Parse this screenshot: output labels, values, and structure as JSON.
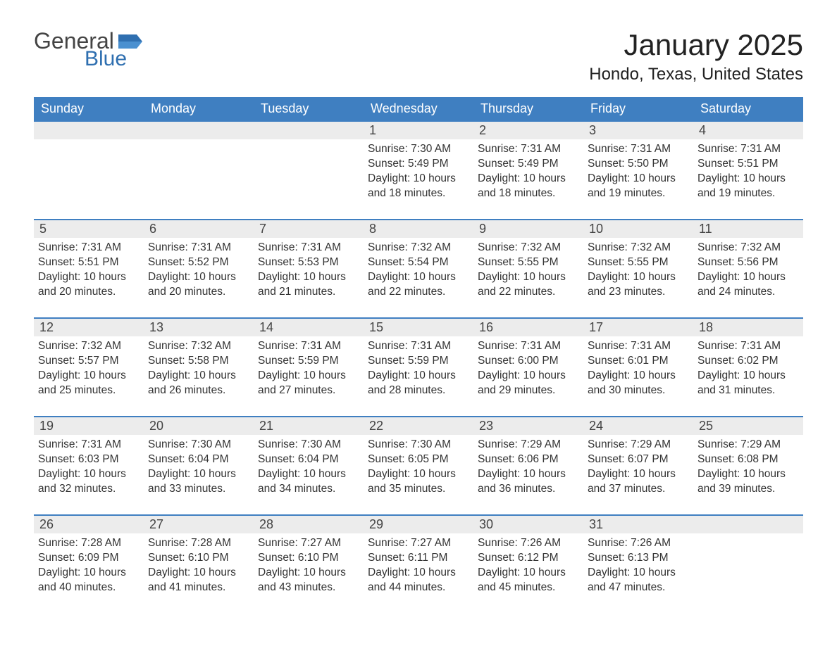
{
  "logo": {
    "text_general": "General",
    "text_blue": "Blue",
    "flag_color": "#2f6fb0"
  },
  "title": "January 2025",
  "location": "Hondo, Texas, United States",
  "colors": {
    "header_bg": "#3f7fc1",
    "header_text": "#ffffff",
    "row_top_border": "#3f7fc1",
    "daynum_bg": "#ececec",
    "body_text": "#333333",
    "page_bg": "#ffffff"
  },
  "weekdays": [
    "Sunday",
    "Monday",
    "Tuesday",
    "Wednesday",
    "Thursday",
    "Friday",
    "Saturday"
  ],
  "labels": {
    "sunrise": "Sunrise",
    "sunset": "Sunset",
    "daylight": "Daylight"
  },
  "weeks": [
    [
      null,
      null,
      null,
      {
        "n": 1,
        "sunrise": "7:30 AM",
        "sunset": "5:49 PM",
        "daylight": "10 hours and 18 minutes."
      },
      {
        "n": 2,
        "sunrise": "7:31 AM",
        "sunset": "5:49 PM",
        "daylight": "10 hours and 18 minutes."
      },
      {
        "n": 3,
        "sunrise": "7:31 AM",
        "sunset": "5:50 PM",
        "daylight": "10 hours and 19 minutes."
      },
      {
        "n": 4,
        "sunrise": "7:31 AM",
        "sunset": "5:51 PM",
        "daylight": "10 hours and 19 minutes."
      }
    ],
    [
      {
        "n": 5,
        "sunrise": "7:31 AM",
        "sunset": "5:51 PM",
        "daylight": "10 hours and 20 minutes."
      },
      {
        "n": 6,
        "sunrise": "7:31 AM",
        "sunset": "5:52 PM",
        "daylight": "10 hours and 20 minutes."
      },
      {
        "n": 7,
        "sunrise": "7:31 AM",
        "sunset": "5:53 PM",
        "daylight": "10 hours and 21 minutes."
      },
      {
        "n": 8,
        "sunrise": "7:32 AM",
        "sunset": "5:54 PM",
        "daylight": "10 hours and 22 minutes."
      },
      {
        "n": 9,
        "sunrise": "7:32 AM",
        "sunset": "5:55 PM",
        "daylight": "10 hours and 22 minutes."
      },
      {
        "n": 10,
        "sunrise": "7:32 AM",
        "sunset": "5:55 PM",
        "daylight": "10 hours and 23 minutes."
      },
      {
        "n": 11,
        "sunrise": "7:32 AM",
        "sunset": "5:56 PM",
        "daylight": "10 hours and 24 minutes."
      }
    ],
    [
      {
        "n": 12,
        "sunrise": "7:32 AM",
        "sunset": "5:57 PM",
        "daylight": "10 hours and 25 minutes."
      },
      {
        "n": 13,
        "sunrise": "7:32 AM",
        "sunset": "5:58 PM",
        "daylight": "10 hours and 26 minutes."
      },
      {
        "n": 14,
        "sunrise": "7:31 AM",
        "sunset": "5:59 PM",
        "daylight": "10 hours and 27 minutes."
      },
      {
        "n": 15,
        "sunrise": "7:31 AM",
        "sunset": "5:59 PM",
        "daylight": "10 hours and 28 minutes."
      },
      {
        "n": 16,
        "sunrise": "7:31 AM",
        "sunset": "6:00 PM",
        "daylight": "10 hours and 29 minutes."
      },
      {
        "n": 17,
        "sunrise": "7:31 AM",
        "sunset": "6:01 PM",
        "daylight": "10 hours and 30 minutes."
      },
      {
        "n": 18,
        "sunrise": "7:31 AM",
        "sunset": "6:02 PM",
        "daylight": "10 hours and 31 minutes."
      }
    ],
    [
      {
        "n": 19,
        "sunrise": "7:31 AM",
        "sunset": "6:03 PM",
        "daylight": "10 hours and 32 minutes."
      },
      {
        "n": 20,
        "sunrise": "7:30 AM",
        "sunset": "6:04 PM",
        "daylight": "10 hours and 33 minutes."
      },
      {
        "n": 21,
        "sunrise": "7:30 AM",
        "sunset": "6:04 PM",
        "daylight": "10 hours and 34 minutes."
      },
      {
        "n": 22,
        "sunrise": "7:30 AM",
        "sunset": "6:05 PM",
        "daylight": "10 hours and 35 minutes."
      },
      {
        "n": 23,
        "sunrise": "7:29 AM",
        "sunset": "6:06 PM",
        "daylight": "10 hours and 36 minutes."
      },
      {
        "n": 24,
        "sunrise": "7:29 AM",
        "sunset": "6:07 PM",
        "daylight": "10 hours and 37 minutes."
      },
      {
        "n": 25,
        "sunrise": "7:29 AM",
        "sunset": "6:08 PM",
        "daylight": "10 hours and 39 minutes."
      }
    ],
    [
      {
        "n": 26,
        "sunrise": "7:28 AM",
        "sunset": "6:09 PM",
        "daylight": "10 hours and 40 minutes."
      },
      {
        "n": 27,
        "sunrise": "7:28 AM",
        "sunset": "6:10 PM",
        "daylight": "10 hours and 41 minutes."
      },
      {
        "n": 28,
        "sunrise": "7:27 AM",
        "sunset": "6:10 PM",
        "daylight": "10 hours and 43 minutes."
      },
      {
        "n": 29,
        "sunrise": "7:27 AM",
        "sunset": "6:11 PM",
        "daylight": "10 hours and 44 minutes."
      },
      {
        "n": 30,
        "sunrise": "7:26 AM",
        "sunset": "6:12 PM",
        "daylight": "10 hours and 45 minutes."
      },
      {
        "n": 31,
        "sunrise": "7:26 AM",
        "sunset": "6:13 PM",
        "daylight": "10 hours and 47 minutes."
      },
      null
    ]
  ]
}
